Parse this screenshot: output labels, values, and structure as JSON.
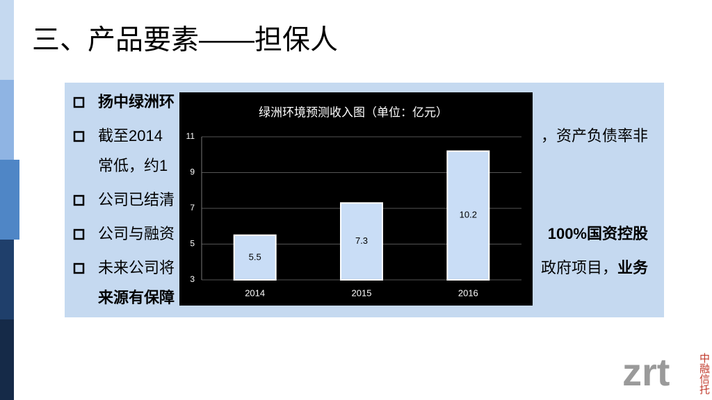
{
  "title": "三、产品要素——担保人",
  "bullets": [
    {
      "lines": [
        {
          "left_bold": "扬中绿洲环"
        }
      ]
    },
    {
      "lines": [
        {
          "left": "截至2014",
          "right": "，资产负债率非"
        },
        {
          "left": "常低，约1"
        }
      ]
    },
    {
      "lines": [
        {
          "left": "公司已结清"
        }
      ]
    },
    {
      "lines": [
        {
          "left": "公司与融资",
          "right_bold": "100%国资控股"
        }
      ]
    },
    {
      "lines": [
        {
          "left": "未来公司将",
          "right": "政府项目，",
          "right_bold": "业务"
        },
        {
          "left_bold": "来源有保障"
        }
      ]
    }
  ],
  "logo": {
    "mark": "zrt",
    "name": "中融信托"
  },
  "chart_data": {
    "type": "bar",
    "title": "绿洲环境预测收入图（单位：亿元）",
    "categories": [
      "2014",
      "2015",
      "2016"
    ],
    "values": [
      5.5,
      7.3,
      10.2
    ],
    "color": "#c9ddf6",
    "ylim": [
      3,
      11
    ],
    "yticks": [
      3,
      5,
      7,
      9,
      11
    ],
    "grid": true
  }
}
